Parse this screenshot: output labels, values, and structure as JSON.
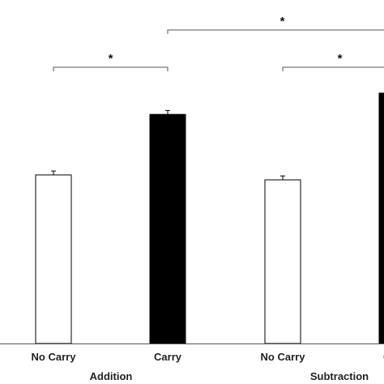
{
  "chart_data": {
    "type": "bar",
    "title": "",
    "xlabel": "",
    "ylabel": "",
    "ylim": [
      0,
      100
    ],
    "grid": false,
    "categories": [
      "No Carry",
      "Carry",
      "No Carry",
      "Carry"
    ],
    "groups": [
      {
        "label": "Addition",
        "bar_indices": [
          0,
          1
        ]
      },
      {
        "label": "Subtraction",
        "bar_indices": [
          2,
          3
        ]
      }
    ],
    "values": [
      51.5,
      70.0,
      50.0,
      76.5
    ],
    "errors": [
      1.2,
      1.2,
      1.2,
      1.2
    ],
    "bar_colors": [
      "#ffffff",
      "#000000",
      "#ffffff",
      "#000000"
    ],
    "bar_edge_color": "#000000",
    "significance": [
      {
        "from": 0,
        "to": 1,
        "label": "*"
      },
      {
        "from": 2,
        "to": 3,
        "label": "*"
      },
      {
        "from": 1,
        "to": 3,
        "label": "*"
      }
    ]
  }
}
